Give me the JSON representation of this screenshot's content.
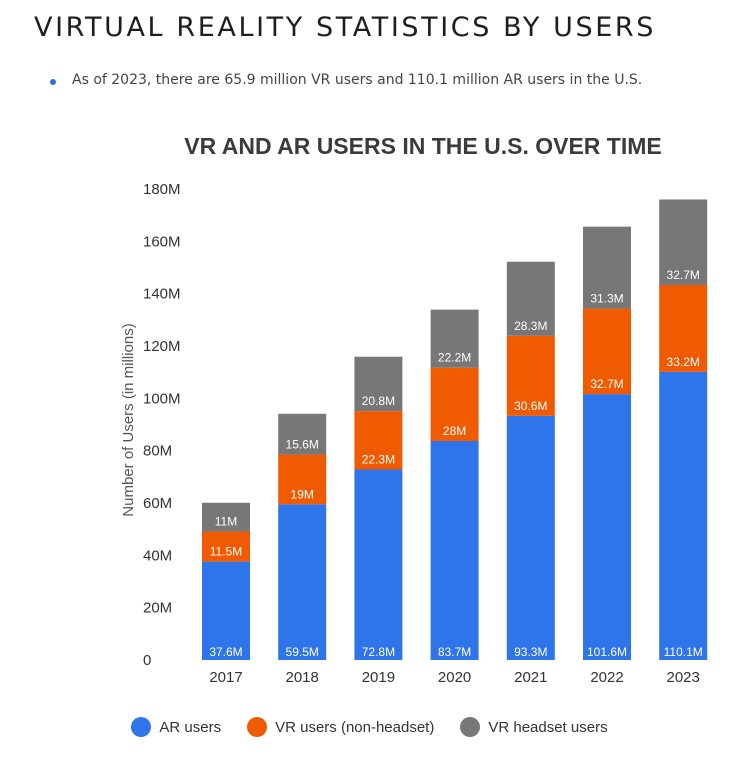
{
  "page": {
    "heading": "VIRTUAL REALITY STATISTICS BY USERS",
    "bullet": "As of 2023, there are 65.9 million VR users and 110.1 million AR users in the U.S."
  },
  "colors": {
    "ar": "#2e74ea",
    "vr_non_headset": "#f05a00",
    "vr_headset": "#777777",
    "bullet": "#2f6fe0"
  },
  "chart_data": {
    "type": "bar",
    "stacked": true,
    "title": "VR AND AR USERS IN THE U.S. OVER TIME",
    "xlabel": "",
    "ylabel": "Number of Users (in millions)",
    "ylim": [
      0,
      180
    ],
    "yticks": [
      0,
      20,
      40,
      60,
      80,
      100,
      120,
      140,
      160,
      180
    ],
    "ytick_labels": [
      "0",
      "20M",
      "40M",
      "60M",
      "80M",
      "100M",
      "120M",
      "140M",
      "160M",
      "180M"
    ],
    "grid": false,
    "categories": [
      "2017",
      "2018",
      "2019",
      "2020",
      "2021",
      "2022",
      "2023"
    ],
    "series": [
      {
        "name": "AR users",
        "color_key": "ar",
        "values": [
          37.6,
          59.5,
          72.8,
          83.7,
          93.3,
          101.6,
          110.1
        ],
        "labels": [
          "37.6M",
          "59.5M",
          "72.8M",
          "83.7M",
          "93.3M",
          "101.6M",
          "110.1M"
        ]
      },
      {
        "name": "VR users (non-headset)",
        "color_key": "vr_non_headset",
        "values": [
          11.5,
          19,
          22.3,
          28,
          30.6,
          32.7,
          33.2
        ],
        "labels": [
          "11.5M",
          "19M",
          "22.3M",
          "28M",
          "30.6M",
          "32.7M",
          "33.2M"
        ]
      },
      {
        "name": "VR headset users",
        "color_key": "vr_headset",
        "values": [
          11,
          15.6,
          20.8,
          22.2,
          28.3,
          31.3,
          32.7
        ],
        "labels": [
          "11M",
          "15.6M",
          "20.8M",
          "22.2M",
          "28.3M",
          "31.3M",
          "32.7M"
        ]
      }
    ],
    "legend": {
      "placement": "bottom",
      "items": [
        "AR users",
        "VR users (non-headset)",
        "VR headset users"
      ]
    }
  }
}
